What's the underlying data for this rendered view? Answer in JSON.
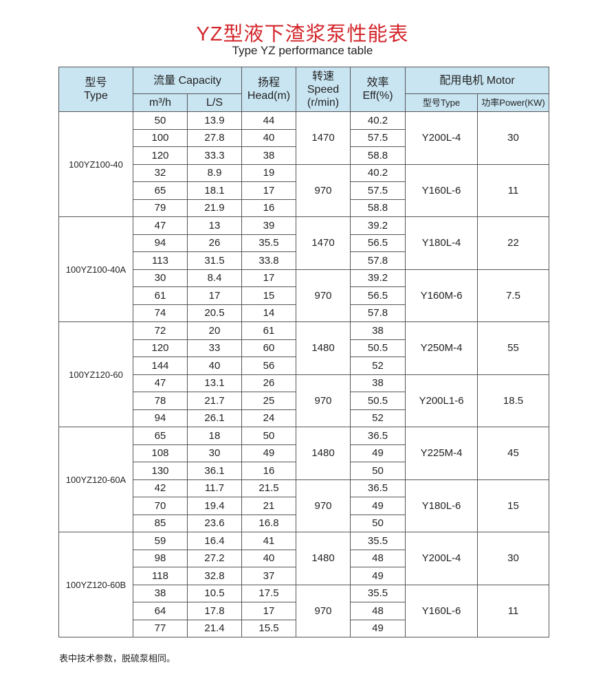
{
  "title": "YZ型液下渣浆泵性能表",
  "subtitle": "Type YZ performance table",
  "header": {
    "type": "型号\nType",
    "capacity": "流量 Capacity",
    "m3h": "m³/h",
    "ls": "L/S",
    "head": "扬程\nHead(m)",
    "speed": "转速\nSpeed\n(r/min)",
    "eff": "效率\nEff(%)",
    "motor": "配用电机 Motor",
    "motor_type": "型号Type",
    "motor_power": "功率Power(KW)"
  },
  "models": [
    {
      "type": "100YZ100-40",
      "groups": [
        {
          "speed": "1470",
          "motor": "Y200L-4",
          "power": "30",
          "rows": [
            [
              "50",
              "13.9",
              "44",
              "40.2"
            ],
            [
              "100",
              "27.8",
              "40",
              "57.5"
            ],
            [
              "120",
              "33.3",
              "38",
              "58.8"
            ]
          ]
        },
        {
          "speed": "970",
          "motor": "Y160L-6",
          "power": "11",
          "rows": [
            [
              "32",
              "8.9",
              "19",
              "40.2"
            ],
            [
              "65",
              "18.1",
              "17",
              "57.5"
            ],
            [
              "79",
              "21.9",
              "16",
              "58.8"
            ]
          ]
        }
      ]
    },
    {
      "type": "100YZ100-40A",
      "groups": [
        {
          "speed": "1470",
          "motor": "Y180L-4",
          "power": "22",
          "rows": [
            [
              "47",
              "13",
              "39",
              "39.2"
            ],
            [
              "94",
              "26",
              "35.5",
              "56.5"
            ],
            [
              "113",
              "31.5",
              "33.8",
              "57.8"
            ]
          ]
        },
        {
          "speed": "970",
          "motor": "Y160M-6",
          "power": "7.5",
          "rows": [
            [
              "30",
              "8.4",
              "17",
              "39.2"
            ],
            [
              "61",
              "17",
              "15",
              "56.5"
            ],
            [
              "74",
              "20.5",
              "14",
              "57.8"
            ]
          ]
        }
      ]
    },
    {
      "type": "100YZ120-60",
      "groups": [
        {
          "speed": "1480",
          "motor": "Y250M-4",
          "power": "55",
          "rows": [
            [
              "72",
              "20",
              "61",
              "38"
            ],
            [
              "120",
              "33",
              "60",
              "50.5"
            ],
            [
              "144",
              "40",
              "56",
              "52"
            ]
          ]
        },
        {
          "speed": "970",
          "motor": "Y200L1-6",
          "power": "18.5",
          "rows": [
            [
              "47",
              "13.1",
              "26",
              "38"
            ],
            [
              "78",
              "21.7",
              "25",
              "50.5"
            ],
            [
              "94",
              "26.1",
              "24",
              "52"
            ]
          ]
        }
      ]
    },
    {
      "type": "100YZ120-60A",
      "groups": [
        {
          "speed": "1480",
          "motor": "Y225M-4",
          "power": "45",
          "rows": [
            [
              "65",
              "18",
              "50",
              "36.5"
            ],
            [
              "108",
              "30",
              "49",
              "49"
            ],
            [
              "130",
              "36.1",
              "16",
              "50"
            ]
          ]
        },
        {
          "speed": "970",
          "motor": "Y180L-6",
          "power": "15",
          "rows": [
            [
              "42",
              "11.7",
              "21.5",
              "36.5"
            ],
            [
              "70",
              "19.4",
              "21",
              "49"
            ],
            [
              "85",
              "23.6",
              "16.8",
              "50"
            ]
          ]
        }
      ]
    },
    {
      "type": "100YZ120-60B",
      "groups": [
        {
          "speed": "1480",
          "motor": "Y200L-4",
          "power": "30",
          "rows": [
            [
              "59",
              "16.4",
              "41",
              "35.5"
            ],
            [
              "98",
              "27.2",
              "40",
              "48"
            ],
            [
              "118",
              "32.8",
              "37",
              "49"
            ]
          ]
        },
        {
          "speed": "970",
          "motor": "Y160L-6",
          "power": "11",
          "rows": [
            [
              "38",
              "10.5",
              "17.5",
              "35.5"
            ],
            [
              "64",
              "17.8",
              "17",
              "48"
            ],
            [
              "77",
              "21.4",
              "15.5",
              "49"
            ]
          ]
        }
      ]
    }
  ],
  "note": "表中技术参数，脱硫泵相同。",
  "colors": {
    "title": "#d3262c",
    "header_bg": "#c9e5f2"
  }
}
